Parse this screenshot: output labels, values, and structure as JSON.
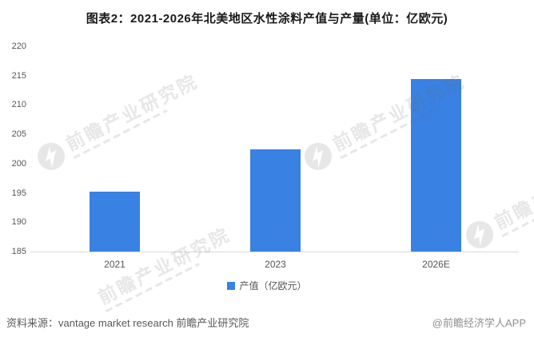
{
  "page": {
    "title": "图表2：2021-2026年北美地区水性涂料产值与产量(单位：亿欧元)"
  },
  "chart_data": {
    "type": "bar",
    "title": "图表2：2021-2026年北美地区水性涂料产值与产量(单位：亿欧元)",
    "unit_note": "单位：亿欧元",
    "categories": [
      "2021",
      "2023",
      "2026E"
    ],
    "series": [
      {
        "name": "产值（亿欧元）",
        "values": [
          195.2,
          202.5,
          214.4
        ]
      }
    ],
    "ylim": [
      185,
      220
    ],
    "ytick_step": 5,
    "yticks": [
      185,
      190,
      195,
      200,
      205,
      210,
      215,
      220
    ],
    "grid": "off",
    "legend_position": "bottom",
    "bar_color": "#3981E3"
  },
  "legend": {
    "label": "产值（亿欧元）",
    "swatch_color": "#3981E3"
  },
  "footer": {
    "source": "资料来源：vantage market research 前瞻产业研究院",
    "credit": "@前瞻经济学人APP"
  },
  "watermark": {
    "text": "前瞻产业研究院"
  },
  "colors": {
    "bar": "#3981E3",
    "axis_line": "#d8d8d8",
    "tick_text": "#555555",
    "source_text": "#595959",
    "credit_text": "#8f8f8f"
  }
}
